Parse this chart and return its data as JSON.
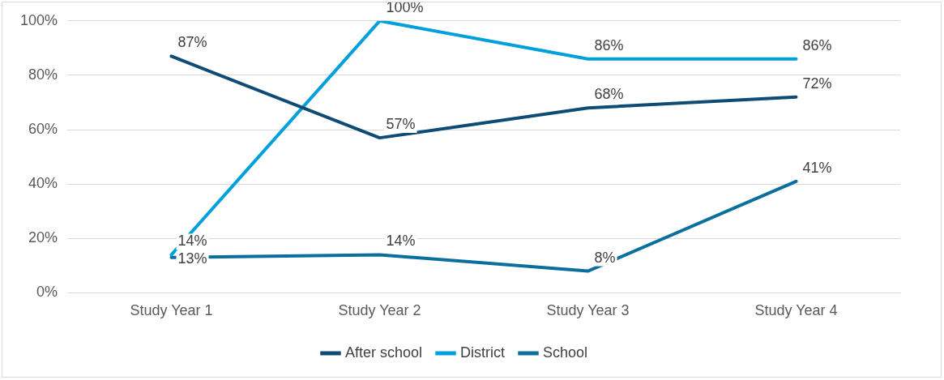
{
  "chart_data": {
    "type": "line",
    "categories": [
      "Study Year 1",
      "Study Year 2",
      "Study Year 3",
      "Study Year 4"
    ],
    "series": [
      {
        "name": "After school",
        "color": "#0f4c75",
        "values": [
          87,
          57,
          68,
          72
        ],
        "value_labels": [
          "87%",
          "57%",
          "68%",
          "72%"
        ]
      },
      {
        "name": "District",
        "color": "#00a0dc",
        "values": [
          14,
          100,
          86,
          86
        ],
        "value_labels": [
          "14%",
          "100%",
          "86%",
          "86%"
        ]
      },
      {
        "name": "School",
        "color": "#0a6f9c",
        "values": [
          13,
          14,
          8,
          41
        ],
        "value_labels": [
          "13%",
          "14%",
          "8%",
          "41%"
        ]
      }
    ],
    "ylim": [
      0,
      100
    ],
    "yticks": [
      {
        "value": 0,
        "label": "0%"
      },
      {
        "value": 20,
        "label": "20%"
      },
      {
        "value": 40,
        "label": "40%"
      },
      {
        "value": 60,
        "label": "60%"
      },
      {
        "value": 80,
        "label": "80%"
      },
      {
        "value": 100,
        "label": "100%"
      }
    ],
    "grid": "y",
    "legend": "bottom",
    "marker": "none",
    "line_style": "solid"
  }
}
